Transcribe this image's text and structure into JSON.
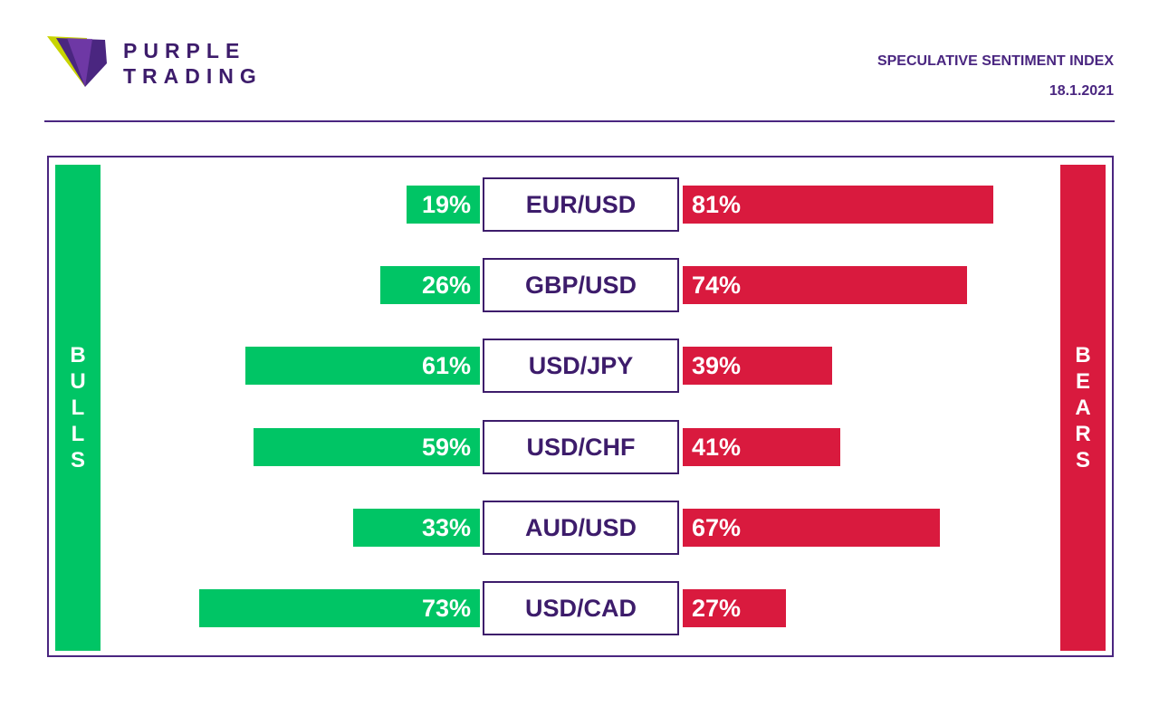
{
  "brand": {
    "line1": "PURPLE",
    "line2": "TRADING",
    "colors": {
      "purple": "#4a2680",
      "dark_purple": "#3d1c6b",
      "lime": "#c8d400"
    }
  },
  "header": {
    "title": "SPECULATIVE SENTIMENT INDEX",
    "date": "18.1.2021"
  },
  "chart_data": {
    "type": "bar",
    "title": "SPECULATIVE SENTIMENT INDEX",
    "left_label": "BULLS",
    "right_label": "BEARS",
    "unit": "%",
    "colors": {
      "bulls": "#00c565",
      "bears": "#d91a3e"
    },
    "categories": [
      "EUR/USD",
      "GBP/USD",
      "USD/JPY",
      "USD/CHF",
      "AUD/USD",
      "USD/CAD"
    ],
    "series": [
      {
        "name": "BULLS",
        "values": [
          19,
          26,
          61,
          59,
          33,
          73
        ]
      },
      {
        "name": "BEARS",
        "values": [
          81,
          74,
          39,
          41,
          67,
          27
        ]
      }
    ],
    "value_labels": {
      "bulls": [
        "19%",
        "26%",
        "61%",
        "59%",
        "33%",
        "73%"
      ],
      "bears": [
        "81%",
        "74%",
        "39%",
        "41%",
        "67%",
        "27%"
      ]
    }
  }
}
